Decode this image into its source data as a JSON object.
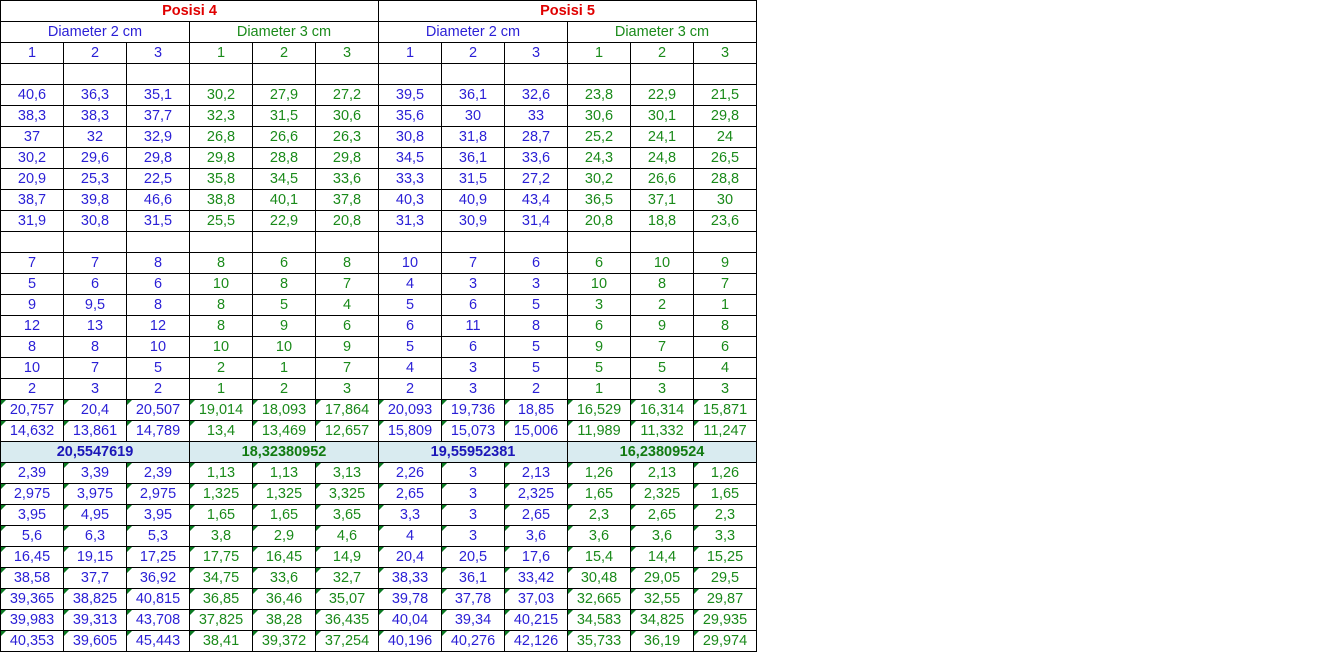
{
  "positions": [
    "Posisi 4",
    "Posisi 5"
  ],
  "diameters": [
    "Diameter 2 cm",
    "Diameter 3 cm",
    "Diameter 2 cm",
    "Diameter 3 cm"
  ],
  "column_numbers": [
    "1",
    "2",
    "3",
    "1",
    "2",
    "3",
    "1",
    "2",
    "3",
    "1",
    "2",
    "3"
  ],
  "block1": [
    [
      "40,6",
      "36,3",
      "35,1",
      "30,2",
      "27,9",
      "27,2",
      "39,5",
      "36,1",
      "32,6",
      "23,8",
      "22,9",
      "21,5"
    ],
    [
      "38,3",
      "38,3",
      "37,7",
      "32,3",
      "31,5",
      "30,6",
      "35,6",
      "30",
      "33",
      "30,6",
      "30,1",
      "29,8"
    ],
    [
      "37",
      "32",
      "32,9",
      "26,8",
      "26,6",
      "26,3",
      "30,8",
      "31,8",
      "28,7",
      "25,2",
      "24,1",
      "24"
    ],
    [
      "30,2",
      "29,6",
      "29,8",
      "29,8",
      "28,8",
      "29,8",
      "34,5",
      "36,1",
      "33,6",
      "24,3",
      "24,8",
      "26,5"
    ],
    [
      "20,9",
      "25,3",
      "22,5",
      "35,8",
      "34,5",
      "33,6",
      "33,3",
      "31,5",
      "27,2",
      "30,2",
      "26,6",
      "28,8"
    ],
    [
      "38,7",
      "39,8",
      "46,6",
      "38,8",
      "40,1",
      "37,8",
      "40,3",
      "40,9",
      "43,4",
      "36,5",
      "37,1",
      "30"
    ],
    [
      "31,9",
      "30,8",
      "31,5",
      "25,5",
      "22,9",
      "20,8",
      "31,3",
      "30,9",
      "31,4",
      "20,8",
      "18,8",
      "23,6"
    ]
  ],
  "block2": [
    [
      "7",
      "7",
      "8",
      "8",
      "6",
      "8",
      "10",
      "7",
      "6",
      "6",
      "10",
      "9"
    ],
    [
      "5",
      "6",
      "6",
      "10",
      "8",
      "7",
      "4",
      "3",
      "3",
      "10",
      "8",
      "7"
    ],
    [
      "9",
      "9,5",
      "8",
      "8",
      "5",
      "4",
      "5",
      "6",
      "5",
      "3",
      "2",
      "1"
    ],
    [
      "12",
      "13",
      "12",
      "8",
      "9",
      "6",
      "6",
      "11",
      "8",
      "6",
      "9",
      "8"
    ],
    [
      "8",
      "8",
      "10",
      "10",
      "10",
      "9",
      "5",
      "6",
      "5",
      "9",
      "7",
      "6"
    ],
    [
      "10",
      "7",
      "5",
      "2",
      "1",
      "7",
      "4",
      "3",
      "5",
      "5",
      "5",
      "4"
    ],
    [
      "2",
      "3",
      "2",
      "1",
      "2",
      "3",
      "2",
      "3",
      "2",
      "1",
      "3",
      "3"
    ]
  ],
  "summary": [
    [
      "20,757",
      "20,4",
      "20,507",
      "19,014",
      "18,093",
      "17,864",
      "20,093",
      "19,736",
      "18,85",
      "16,529",
      "16,314",
      "15,871"
    ],
    [
      "14,632",
      "13,861",
      "14,789",
      "13,4",
      "13,469",
      "12,657",
      "15,809",
      "15,073",
      "15,006",
      "11,989",
      "11,332",
      "11,247"
    ]
  ],
  "averages": [
    "20,5547619",
    "18,32380952",
    "19,55952381",
    "16,23809524"
  ],
  "block3": [
    [
      "2,39",
      "3,39",
      "2,39",
      "1,13",
      "1,13",
      "3,13",
      "2,26",
      "3",
      "2,13",
      "1,26",
      "2,13",
      "1,26"
    ],
    [
      "2,975",
      "3,975",
      "2,975",
      "1,325",
      "1,325",
      "3,325",
      "2,65",
      "3",
      "2,325",
      "1,65",
      "2,325",
      "1,65"
    ],
    [
      "3,95",
      "4,95",
      "3,95",
      "1,65",
      "1,65",
      "3,65",
      "3,3",
      "3",
      "2,65",
      "2,3",
      "2,65",
      "2,3"
    ],
    [
      "5,6",
      "6,3",
      "5,3",
      "3,8",
      "2,9",
      "4,6",
      "4",
      "3",
      "3,6",
      "3,6",
      "3,6",
      "3,3"
    ],
    [
      "16,45",
      "19,15",
      "17,25",
      "17,75",
      "16,45",
      "14,9",
      "20,4",
      "20,5",
      "17,6",
      "15,4",
      "14,4",
      "15,25"
    ],
    [
      "38,58",
      "37,7",
      "36,92",
      "34,75",
      "33,6",
      "32,7",
      "38,33",
      "36,1",
      "33,42",
      "30,48",
      "29,05",
      "29,5"
    ],
    [
      "39,365",
      "38,825",
      "40,815",
      "36,85",
      "36,46",
      "35,07",
      "39,78",
      "37,78",
      "37,03",
      "32,665",
      "32,55",
      "29,87"
    ],
    [
      "39,983",
      "39,313",
      "43,708",
      "37,825",
      "38,28",
      "36,435",
      "40,04",
      "39,34",
      "40,215",
      "34,583",
      "34,825",
      "29,935"
    ],
    [
      "40,353",
      "39,605",
      "45,443",
      "38,41",
      "39,372",
      "37,254",
      "40,196",
      "40,276",
      "42,126",
      "35,733",
      "36,19",
      "29,974"
    ]
  ],
  "colors": {
    "blue_text": "#2a1fd6",
    "green_text": "#1a8a1a",
    "position_header": "#e00000",
    "average_fill": "#d9ebf0",
    "error_marker": "#0b7a22"
  }
}
